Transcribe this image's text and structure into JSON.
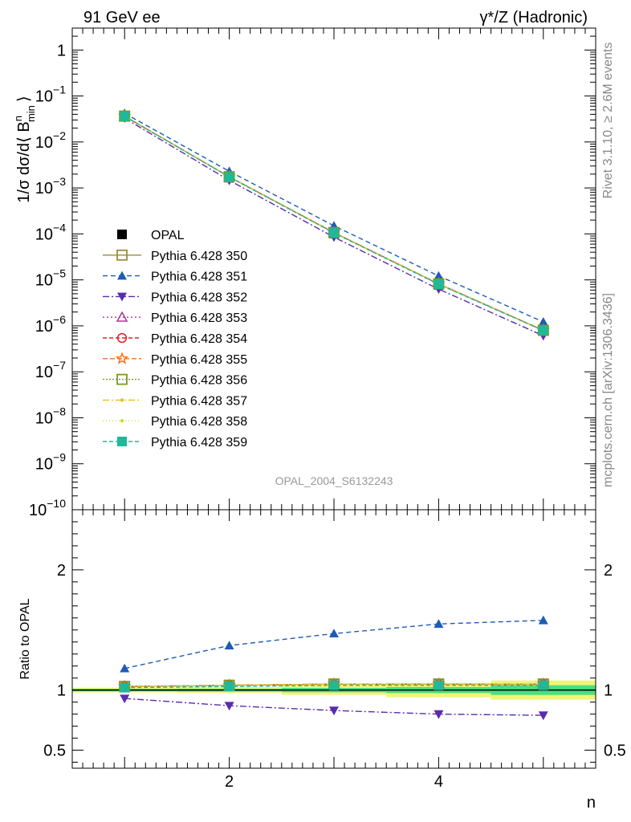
{
  "header": {
    "left": "91 GeV ee",
    "right": "γ*/Z (Hadronic)"
  },
  "side_labels": {
    "rivet": "Rivet 3.1.10, ≥ 2.6M events",
    "mcplots": "mcplots.cern.ch [arXiv:1306.3436]"
  },
  "watermark": "OPAL_2004_S6132243",
  "chart_data": [
    {
      "type": "line",
      "panel": "main",
      "ylabel": "1/σ dσ/d⟨ B",
      "ylabel_sup": "n",
      "ylabel_sub": "min",
      "ylabel_tail": "⟩",
      "yscale": "log",
      "ylim": [
        1e-10,
        3
      ],
      "xlim": [
        0.5,
        5.5
      ],
      "yticks": [
        {
          "v": 1,
          "base": "1",
          "exp": ""
        },
        {
          "v": 0.1,
          "base": "10",
          "exp": "−1"
        },
        {
          "v": 0.01,
          "base": "10",
          "exp": "−2"
        },
        {
          "v": 0.001,
          "base": "10",
          "exp": "−3"
        },
        {
          "v": 0.0001,
          "base": "10",
          "exp": "−4"
        },
        {
          "v": 1e-05,
          "base": "10",
          "exp": "−5"
        },
        {
          "v": 1e-06,
          "base": "10",
          "exp": "−6"
        },
        {
          "v": 1e-07,
          "base": "10",
          "exp": "−7"
        },
        {
          "v": 1e-08,
          "base": "10",
          "exp": "−8"
        },
        {
          "v": 1e-09,
          "base": "10",
          "exp": "−9"
        },
        {
          "v": 1e-10,
          "base": "10",
          "exp": "−10"
        }
      ],
      "x": [
        1,
        2,
        3,
        4,
        5
      ],
      "series": [
        {
          "name": "OPAL",
          "color": "#000000",
          "marker": "square-filled",
          "dash": "none",
          "values": [
            0.0355,
            0.00168,
            0.000102,
            7.8e-06,
            7.7e-07
          ]
        },
        {
          "name": "Pythia 6.428 350",
          "color": "#9a8c3c",
          "marker": "square-open",
          "dash": "solid",
          "values": [
            0.0365,
            0.00175,
            0.000107,
            8.2e-06,
            8e-07
          ]
        },
        {
          "name": "Pythia 6.428 351",
          "color": "#1f5bb5",
          "marker": "triangle-up",
          "dash": "6,4",
          "values": [
            0.042,
            0.0023,
            0.00015,
            1.22e-05,
            1.22e-06
          ]
        },
        {
          "name": "Pythia 6.428 352",
          "color": "#5b2bb0",
          "marker": "triangle-down",
          "dash": "8,3,2,3",
          "values": [
            0.033,
            0.00146,
            8.5e-05,
            6.3e-06,
            6.1e-07
          ]
        },
        {
          "name": "Pythia 6.428 353",
          "color": "#b0339b",
          "marker": "triangle-open",
          "dash": "2,3",
          "values": [
            0.0365,
            0.00175,
            0.000107,
            8.2e-06,
            8e-07
          ]
        },
        {
          "name": "Pythia 6.428 354",
          "color": "#e0202a",
          "marker": "circle-open",
          "dash": "5,3",
          "values": [
            0.0365,
            0.00175,
            0.000107,
            8.2e-06,
            8e-07
          ]
        },
        {
          "name": "Pythia 6.428 355",
          "color": "#f07020",
          "marker": "star-open",
          "dash": "6,3",
          "values": [
            0.0365,
            0.00175,
            0.000107,
            8.2e-06,
            8e-07
          ]
        },
        {
          "name": "Pythia 6.428 356",
          "color": "#7a9a1a",
          "marker": "square-open",
          "dash": "2,2",
          "values": [
            0.0365,
            0.00175,
            0.000107,
            8.2e-06,
            8e-07
          ]
        },
        {
          "name": "Pythia 6.428 357",
          "color": "#e8c020",
          "marker": "dot",
          "dash": "8,3,2,3",
          "values": [
            0.0365,
            0.00175,
            0.000107,
            8.2e-06,
            8e-07
          ]
        },
        {
          "name": "Pythia 6.428 358",
          "color": "#d8d830",
          "marker": "dot",
          "dash": "1,3",
          "values": [
            0.0365,
            0.00175,
            0.000107,
            8.2e-06,
            8e-07
          ]
        },
        {
          "name": "Pythia 6.428 359",
          "color": "#20b89a",
          "marker": "square-filled",
          "dash": "5,3",
          "values": [
            0.0362,
            0.00172,
            0.000105,
            8e-06,
            7.9e-07
          ]
        }
      ]
    },
    {
      "type": "line",
      "panel": "ratio",
      "ylabel": "Ratio to OPAL",
      "xlabel": "n",
      "ylim": [
        0.35,
        2.5
      ],
      "xlim": [
        0.5,
        5.5
      ],
      "yticks": [
        {
          "v": 0.5,
          "label": "0.5"
        },
        {
          "v": 1,
          "label": "1"
        },
        {
          "v": 2,
          "label": "2"
        }
      ],
      "xticks": [
        {
          "v": 2,
          "label": "2"
        },
        {
          "v": 4,
          "label": "4"
        }
      ],
      "x": [
        1,
        2,
        3,
        4,
        5
      ],
      "band": {
        "edges": [
          0.5,
          1.5,
          2.5,
          3.5,
          4.5,
          5.5
        ],
        "stat": [
          0.01,
          0.012,
          0.018,
          0.025,
          0.04
        ],
        "total": [
          0.02,
          0.025,
          0.04,
          0.06,
          0.08
        ],
        "stat_color": "#4ade80",
        "total_color": "#f0f57a"
      },
      "series": [
        {
          "name": "Pythia 6.428 350",
          "color": "#9a8c3c",
          "marker": "square-open",
          "dash": "solid",
          "values": [
            1.03,
            1.04,
            1.05,
            1.05,
            1.05
          ]
        },
        {
          "name": "Pythia 6.428 351",
          "color": "#1f5bb5",
          "marker": "triangle-up",
          "dash": "6,4",
          "values": [
            1.18,
            1.37,
            1.47,
            1.55,
            1.58
          ]
        },
        {
          "name": "Pythia 6.428 352",
          "color": "#5b2bb0",
          "marker": "triangle-down",
          "dash": "8,3,2,3",
          "values": [
            0.93,
            0.87,
            0.83,
            0.8,
            0.79
          ]
        },
        {
          "name": "Pythia 6.428 353",
          "color": "#b0339b",
          "marker": "triangle-open",
          "dash": "2,3",
          "values": [
            1.03,
            1.04,
            1.05,
            1.05,
            1.05
          ]
        },
        {
          "name": "Pythia 6.428 354",
          "color": "#e0202a",
          "marker": "circle-open",
          "dash": "5,3",
          "values": [
            1.03,
            1.04,
            1.05,
            1.05,
            1.05
          ]
        },
        {
          "name": "Pythia 6.428 355",
          "color": "#f07020",
          "marker": "star-open",
          "dash": "6,3",
          "values": [
            1.03,
            1.04,
            1.05,
            1.05,
            1.05
          ]
        },
        {
          "name": "Pythia 6.428 356",
          "color": "#7a9a1a",
          "marker": "square-open",
          "dash": "2,2",
          "values": [
            1.03,
            1.04,
            1.05,
            1.05,
            1.05
          ]
        },
        {
          "name": "Pythia 6.428 357",
          "color": "#e8c020",
          "marker": "dot",
          "dash": "8,3,2,3",
          "values": [
            1.03,
            1.04,
            1.05,
            1.05,
            1.05
          ]
        },
        {
          "name": "Pythia 6.428 358",
          "color": "#d8d830",
          "marker": "dot",
          "dash": "1,3",
          "values": [
            1.03,
            1.04,
            1.05,
            1.05,
            1.05
          ]
        },
        {
          "name": "Pythia 6.428 359",
          "color": "#20b89a",
          "marker": "square-filled",
          "dash": "5,3",
          "values": [
            1.02,
            1.03,
            1.04,
            1.04,
            1.04
          ]
        }
      ]
    }
  ]
}
